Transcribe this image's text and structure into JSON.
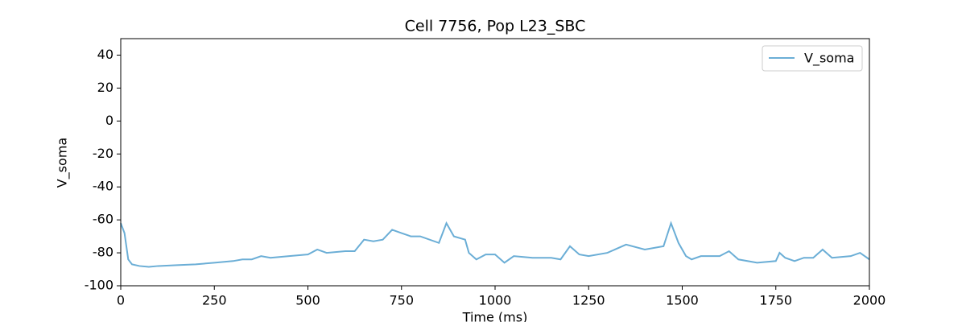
{
  "chart_data": {
    "type": "line",
    "title": "Cell 7756, Pop L23_SBC",
    "xlabel": "Time (ms)",
    "ylabel": "V_soma",
    "x": [
      0,
      10,
      20,
      30,
      50,
      75,
      100,
      150,
      200,
      250,
      300,
      325,
      350,
      375,
      400,
      450,
      500,
      525,
      550,
      600,
      625,
      650,
      675,
      700,
      725,
      750,
      775,
      800,
      850,
      870,
      890,
      920,
      930,
      950,
      975,
      1000,
      1025,
      1050,
      1100,
      1150,
      1175,
      1200,
      1225,
      1250,
      1300,
      1350,
      1400,
      1450,
      1470,
      1490,
      1510,
      1525,
      1550,
      1600,
      1625,
      1650,
      1700,
      1750,
      1760,
      1775,
      1800,
      1825,
      1850,
      1875,
      1900,
      1950,
      1975,
      2000
    ],
    "series": [
      {
        "name": "V_soma",
        "color": "#6baed6",
        "values": [
          -62,
          -68,
          -84,
          -87,
          -88,
          -88.5,
          -88,
          -87.5,
          -87,
          -86,
          -85,
          -84,
          -84,
          -82,
          -83,
          -82,
          -81,
          -78,
          -80,
          -79,
          -79,
          -72,
          -73,
          -72,
          -66,
          -68,
          -70,
          -70,
          -74,
          -62,
          -70,
          -72,
          -80,
          -84,
          -81,
          -81,
          -86,
          -82,
          -83,
          -83,
          -84,
          -76,
          -81,
          -82,
          -80,
          -75,
          -78,
          -76,
          -62,
          -74,
          -82,
          -84,
          -82,
          -82,
          -79,
          -84,
          -86,
          -85,
          -80,
          -83,
          -85,
          -83,
          -83,
          -78,
          -83,
          -82,
          -80,
          -84
        ]
      }
    ],
    "xlim": [
      0,
      2000
    ],
    "xticks": [
      0,
      250,
      500,
      750,
      1000,
      1250,
      1500,
      1750,
      2000
    ],
    "ylim": [
      -100,
      50
    ],
    "yticks": [
      -100,
      -80,
      -60,
      -40,
      -20,
      0,
      20,
      40
    ],
    "legend": "upper right"
  }
}
